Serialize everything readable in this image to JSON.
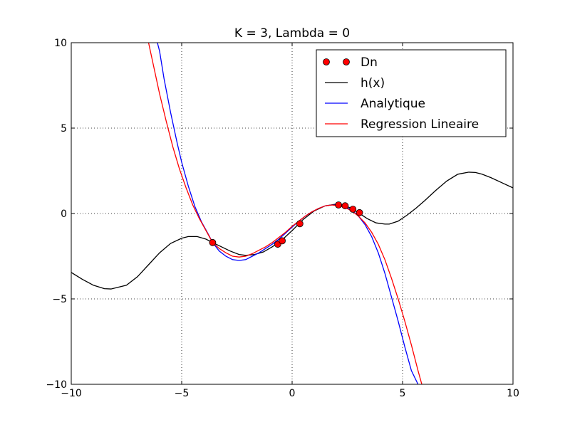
{
  "chart_data": {
    "type": "line",
    "title": "K = 3, Lambda = 0",
    "xlabel": "",
    "ylabel": "",
    "xlim": [
      -10,
      10
    ],
    "ylim": [
      -10,
      10
    ],
    "xticks": [
      -10,
      -5,
      0,
      5,
      10
    ],
    "yticks": [
      -10,
      -5,
      0,
      5,
      10
    ],
    "xtick_labels": [
      "−10",
      "−5",
      "0",
      "5",
      "10"
    ],
    "ytick_labels": [
      "−10",
      "−5",
      "0",
      "5",
      "10"
    ],
    "grid": true,
    "legend_position": "top-right",
    "series": [
      {
        "name": "Dn",
        "kind": "points",
        "color": "#ff0000",
        "x": [
          -3.6,
          -0.65,
          -0.45,
          0.35,
          2.1,
          2.4,
          2.75,
          3.05
        ],
        "y": [
          -1.7,
          -1.8,
          -1.6,
          -0.6,
          0.5,
          0.45,
          0.25,
          0.05
        ]
      },
      {
        "name": "h(x)",
        "kind": "line",
        "color": "#000000",
        "x": [
          -10,
          -9.5,
          -9,
          -8.5,
          -8.2,
          -7.5,
          -7,
          -6.5,
          -6,
          -5.5,
          -5,
          -4.7,
          -4.3,
          -3.9,
          -3.6,
          -3.2,
          -2.8,
          -2.4,
          -2.1,
          -1.7,
          -1.3,
          -0.9,
          -0.5,
          0,
          0.5,
          1,
          1.5,
          2,
          2.3,
          2.7,
          3,
          3.4,
          3.8,
          4.2,
          4.4,
          4.8,
          5.2,
          5.6,
          6,
          6.5,
          7,
          7.5,
          8,
          8.3,
          8.6,
          9,
          9.5,
          10
        ],
        "y": [
          -3.45,
          -3.85,
          -4.2,
          -4.4,
          -4.42,
          -4.2,
          -3.7,
          -3.0,
          -2.3,
          -1.75,
          -1.45,
          -1.35,
          -1.35,
          -1.5,
          -1.7,
          -1.95,
          -2.2,
          -2.4,
          -2.45,
          -2.4,
          -2.25,
          -1.95,
          -1.6,
          -1.0,
          -0.35,
          0.15,
          0.45,
          0.55,
          0.5,
          0.3,
          0.05,
          -0.3,
          -0.55,
          -0.62,
          -0.62,
          -0.45,
          -0.1,
          0.3,
          0.75,
          1.35,
          1.9,
          2.3,
          2.42,
          2.4,
          2.3,
          2.1,
          1.8,
          1.5
        ]
      },
      {
        "name": "Analytique",
        "kind": "line",
        "color": "#0000ff",
        "x": [
          -6.1,
          -6,
          -5.8,
          -5.5,
          -5.2,
          -5,
          -4.7,
          -4.4,
          -4.1,
          -3.8,
          -3.6,
          -3.3,
          -3,
          -2.7,
          -2.4,
          -2.1,
          -1.8,
          -1.5,
          -1.2,
          -0.9,
          -0.6,
          -0.3,
          0,
          0.3,
          0.6,
          0.9,
          1.2,
          1.5,
          1.8,
          2.1,
          2.4,
          2.7,
          3,
          3.3,
          3.6,
          3.9,
          4.2,
          4.5,
          4.8,
          5.1,
          5.4,
          5.7
        ],
        "y": [
          10,
          9.5,
          7.9,
          5.9,
          4.1,
          3.0,
          1.6,
          0.4,
          -0.5,
          -1.2,
          -1.7,
          -2.2,
          -2.5,
          -2.7,
          -2.75,
          -2.7,
          -2.5,
          -2.3,
          -2.05,
          -1.8,
          -1.5,
          -1.15,
          -0.8,
          -0.45,
          -0.15,
          0.1,
          0.3,
          0.45,
          0.5,
          0.5,
          0.4,
          0.2,
          -0.15,
          -0.65,
          -1.35,
          -2.3,
          -3.5,
          -4.9,
          -6.3,
          -7.8,
          -9.2,
          -10
        ]
      },
      {
        "name": "Regression Lineaire",
        "kind": "line",
        "color": "#ff0000",
        "x": [
          -6.5,
          -6.3,
          -6,
          -5.7,
          -5.4,
          -5.1,
          -4.8,
          -4.5,
          -4.2,
          -3.9,
          -3.6,
          -3.3,
          -3,
          -2.7,
          -2.4,
          -2.1,
          -1.8,
          -1.5,
          -1.2,
          -0.9,
          -0.6,
          -0.3,
          0,
          0.3,
          0.6,
          0.9,
          1.2,
          1.5,
          1.8,
          2.1,
          2.4,
          2.7,
          3,
          3.3,
          3.6,
          3.9,
          4.2,
          4.5,
          4.8,
          5.1,
          5.4,
          5.7,
          6.0
        ],
        "y": [
          10,
          8.8,
          7.0,
          5.4,
          3.9,
          2.6,
          1.5,
          0.5,
          -0.3,
          -1.0,
          -1.7,
          -2.05,
          -2.3,
          -2.5,
          -2.55,
          -2.5,
          -2.35,
          -2.15,
          -1.95,
          -1.7,
          -1.4,
          -1.1,
          -0.75,
          -0.45,
          -0.15,
          0.1,
          0.3,
          0.45,
          0.5,
          0.45,
          0.35,
          0.15,
          -0.15,
          -0.55,
          -1.1,
          -1.8,
          -2.7,
          -3.8,
          -5.0,
          -6.3,
          -7.7,
          -9.2,
          -10.6
        ]
      }
    ]
  }
}
